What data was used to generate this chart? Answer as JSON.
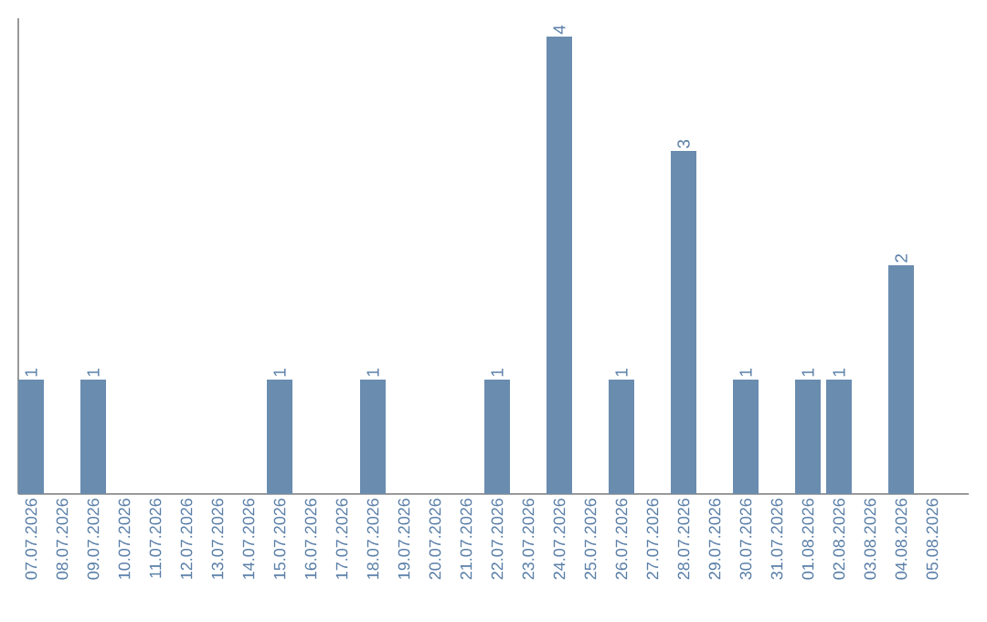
{
  "chart_data": {
    "type": "bar",
    "categories": [
      "07.07.2026",
      "08.07.2026",
      "09.07.2026",
      "10.07.2026",
      "11.07.2026",
      "12.07.2026",
      "13.07.2026",
      "14.07.2026",
      "15.07.2026",
      "16.07.2026",
      "17.07.2026",
      "18.07.2026",
      "19.07.2026",
      "20.07.2026",
      "21.07.2026",
      "22.07.2026",
      "23.07.2026",
      "24.07.2026",
      "25.07.2026",
      "26.07.2026",
      "27.07.2026",
      "28.07.2026",
      "29.07.2026",
      "30.07.2026",
      "31.07.2026",
      "01.08.2026",
      "02.08.2026",
      "03.08.2026",
      "04.08.2026",
      "05.08.2026"
    ],
    "values": [
      1,
      0,
      1,
      0,
      0,
      0,
      0,
      0,
      1,
      0,
      0,
      1,
      0,
      0,
      0,
      1,
      0,
      4,
      0,
      1,
      0,
      3,
      0,
      1,
      0,
      1,
      1,
      0,
      2,
      0
    ],
    "value_labels": [
      "1",
      null,
      "1",
      null,
      null,
      null,
      null,
      null,
      "1",
      null,
      null,
      "1",
      null,
      null,
      null,
      "1",
      null,
      "4",
      null,
      "1",
      null,
      "3",
      null,
      "1",
      null,
      "1",
      "1",
      null,
      "2",
      null
    ],
    "color": "#6a8caf",
    "tick_labels": "x"
  }
}
